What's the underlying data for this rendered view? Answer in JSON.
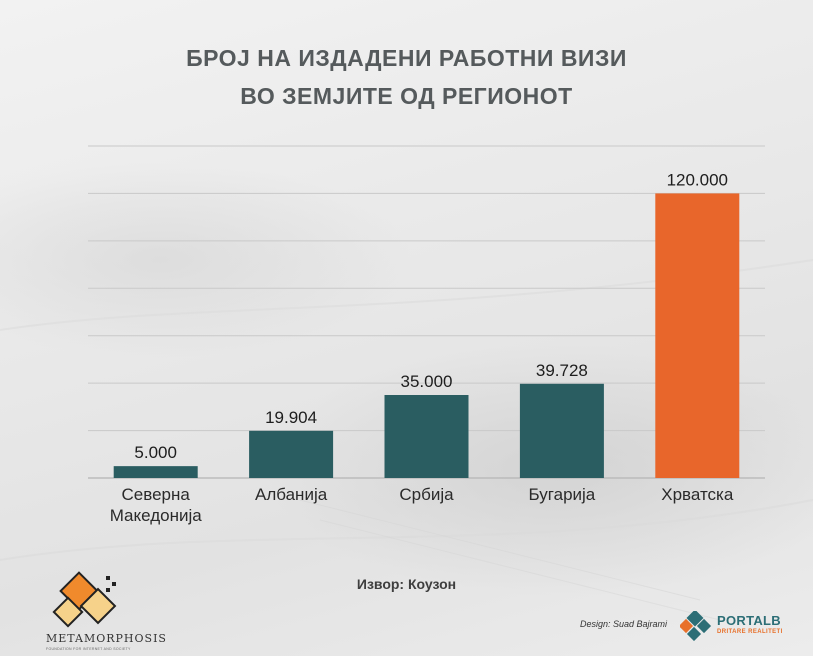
{
  "title_line_1": "БРОЈ НА ИЗДАДЕНИ РАБОТНИ ВИЗИ",
  "title_line_2": "ВО ЗЕМЈИТЕ ОД РЕГИОНОТ",
  "chart_data": {
    "type": "bar",
    "title": "БРОЈ НА ИЗДАДЕНИ РАБОТНИ ВИЗИ ВО ЗЕМЈИТЕ ОД РЕГИОНОТ",
    "categories": [
      {
        "lines": [
          "Северна",
          "Македонија"
        ]
      },
      {
        "lines": [
          "Албанија"
        ]
      },
      {
        "lines": [
          "Србија"
        ]
      },
      {
        "lines": [
          "Бугарија"
        ]
      },
      {
        "lines": [
          "Хрватска"
        ]
      }
    ],
    "values": [
      5000,
      19904,
      35000,
      39728,
      120000
    ],
    "value_labels": [
      "5.000",
      "19.904",
      "35.000",
      "39.728",
      "120.000"
    ],
    "bar_colors": [
      "#2a5d61",
      "#2a5d61",
      "#2a5d61",
      "#2a5d61",
      "#e8662b"
    ],
    "ylim": [
      0,
      140000
    ],
    "grid": true,
    "gridline_step": 20000
  },
  "source": "Извор: Коузон",
  "credit": "Design: Suad Bajrami",
  "portal_logo": {
    "name": "PORTALB",
    "tagline": "DRITARE REALITETI"
  },
  "meta_logo": {
    "name": "METAMORPHOSIS",
    "subtitle": "FOUNDATION FOR INTERNET AND SOCIETY"
  },
  "colors": {
    "bar": "#2a5d61",
    "highlight_bar": "#e8662b",
    "title": "#555a5c",
    "grid": "#c9c9c9"
  }
}
